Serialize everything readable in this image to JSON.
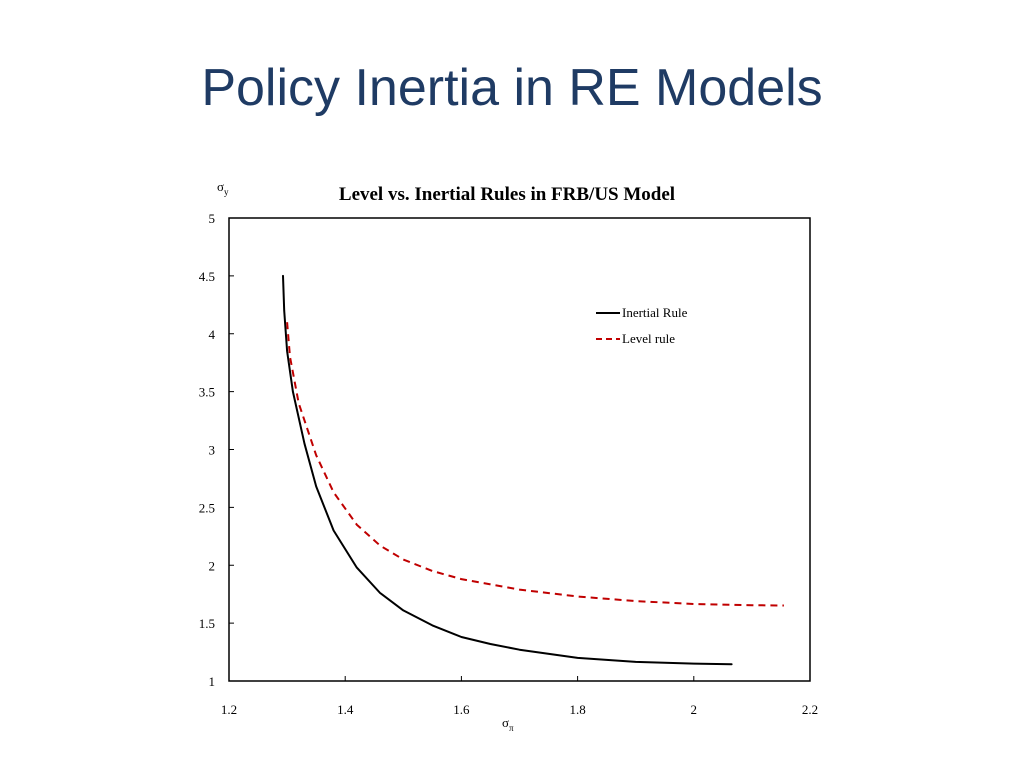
{
  "slide": {
    "title": "Policy Inertia in RE Models"
  },
  "chart_data": {
    "type": "line",
    "title": "Level vs. Inertial Rules in FRB/US Model",
    "xlabel": {
      "base": "σ",
      "sub": "π"
    },
    "ylabel": {
      "base": "σ",
      "sub": "y"
    },
    "xlim": [
      1.2,
      2.2
    ],
    "ylim": [
      1,
      5
    ],
    "x_ticks": [
      "1.2",
      "1.4",
      "1.6",
      "1.8",
      "2",
      "2.2"
    ],
    "y_ticks": [
      "1",
      "1.5",
      "2",
      "2.5",
      "3",
      "3.5",
      "4",
      "4.5",
      "5"
    ],
    "grid": false,
    "legend_position": "top-right",
    "series": [
      {
        "name": "Inertial Rule",
        "color": "#000000",
        "style": "solid",
        "points": [
          [
            1.293,
            4.5
          ],
          [
            1.295,
            4.2
          ],
          [
            1.3,
            3.85
          ],
          [
            1.31,
            3.5
          ],
          [
            1.33,
            3.05
          ],
          [
            1.35,
            2.68
          ],
          [
            1.38,
            2.3
          ],
          [
            1.42,
            1.98
          ],
          [
            1.46,
            1.76
          ],
          [
            1.5,
            1.61
          ],
          [
            1.55,
            1.48
          ],
          [
            1.6,
            1.38
          ],
          [
            1.65,
            1.32
          ],
          [
            1.7,
            1.27
          ],
          [
            1.8,
            1.2
          ],
          [
            1.9,
            1.165
          ],
          [
            2.0,
            1.15
          ],
          [
            2.065,
            1.145
          ]
        ]
      },
      {
        "name": "Level rule",
        "color": "#c00000",
        "style": "dashed",
        "points": [
          [
            1.3,
            4.1
          ],
          [
            1.305,
            3.8
          ],
          [
            1.32,
            3.4
          ],
          [
            1.35,
            2.95
          ],
          [
            1.38,
            2.63
          ],
          [
            1.42,
            2.35
          ],
          [
            1.46,
            2.17
          ],
          [
            1.5,
            2.05
          ],
          [
            1.55,
            1.95
          ],
          [
            1.6,
            1.88
          ],
          [
            1.7,
            1.79
          ],
          [
            1.8,
            1.73
          ],
          [
            1.9,
            1.69
          ],
          [
            2.0,
            1.665
          ],
          [
            2.1,
            1.655
          ],
          [
            2.155,
            1.652
          ]
        ]
      }
    ]
  }
}
